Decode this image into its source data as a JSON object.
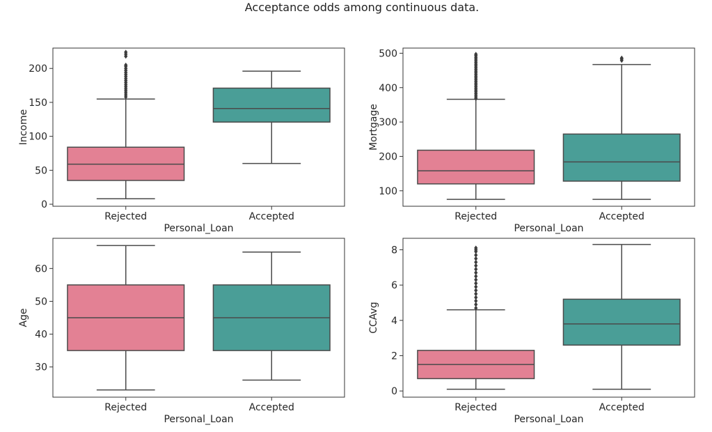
{
  "title": "Acceptance odds among continuous data.",
  "colors": {
    "rejected": "#e38194",
    "accepted": "#4a9e97",
    "line": "#4a4a4a",
    "outlier": "#3c3c3c"
  },
  "chart_data": [
    {
      "type": "box",
      "xlabel": "Personal_Loan",
      "ylabel": "Income",
      "categories": [
        "Rejected",
        "Accepted"
      ],
      "ylim": [
        -3,
        230
      ],
      "yticks": [
        0,
        50,
        100,
        150,
        200
      ],
      "boxes": [
        {
          "category": "Rejected",
          "min": 8,
          "q1": 35,
          "median": 59,
          "q3": 84,
          "max": 155,
          "outliers": [
            158,
            161,
            164,
            167,
            170,
            173,
            176,
            179,
            182,
            185,
            188,
            191,
            194,
            197,
            200,
            203,
            205,
            218,
            221,
            224
          ]
        },
        {
          "category": "Accepted",
          "min": 60,
          "q1": 121,
          "median": 141,
          "q3": 171,
          "max": 196,
          "outliers": []
        }
      ]
    },
    {
      "type": "box",
      "xlabel": "Personal_Loan",
      "ylabel": "Mortgage",
      "categories": [
        "Rejected",
        "Accepted"
      ],
      "ylim": [
        55,
        515
      ],
      "yticks": [
        100,
        200,
        300,
        400,
        500
      ],
      "boxes": [
        {
          "category": "Rejected",
          "min": 75,
          "q1": 120,
          "median": 158,
          "q3": 218,
          "max": 366,
          "outliers": [
            368,
            373,
            378,
            383,
            388,
            393,
            398,
            403,
            408,
            413,
            418,
            423,
            428,
            433,
            438,
            443,
            448,
            453,
            458,
            463,
            468,
            473,
            478,
            483,
            488,
            493,
            497
          ]
        },
        {
          "category": "Accepted",
          "min": 75,
          "q1": 128,
          "median": 184,
          "q3": 265,
          "max": 467,
          "outliers": [
            479,
            483,
            486
          ]
        }
      ]
    },
    {
      "type": "box",
      "xlabel": "Personal_Loan",
      "ylabel": "Age",
      "categories": [
        "Rejected",
        "Accepted"
      ],
      "ylim": [
        20.8,
        69.2
      ],
      "yticks": [
        30,
        40,
        50,
        60
      ],
      "boxes": [
        {
          "category": "Rejected",
          "min": 23,
          "q1": 35,
          "median": 45,
          "q3": 55,
          "max": 67,
          "outliers": []
        },
        {
          "category": "Accepted",
          "min": 26,
          "q1": 35,
          "median": 45,
          "q3": 55,
          "max": 65,
          "outliers": []
        }
      ]
    },
    {
      "type": "box",
      "xlabel": "Personal_Loan",
      "ylabel": "CCAvg",
      "categories": [
        "Rejected",
        "Accepted"
      ],
      "ylim": [
        -0.35,
        8.65
      ],
      "yticks": [
        0,
        2,
        4,
        6,
        8
      ],
      "boxes": [
        {
          "category": "Rejected",
          "min": 0.1,
          "q1": 0.7,
          "median": 1.5,
          "q3": 2.3,
          "max": 4.6,
          "outliers": [
            4.7,
            4.9,
            5.1,
            5.3,
            5.5,
            5.7,
            5.9,
            6.1,
            6.3,
            6.5,
            6.7,
            6.9,
            7.1,
            7.3,
            7.5,
            7.7,
            7.9,
            8.0,
            8.1
          ]
        },
        {
          "category": "Accepted",
          "min": 0.1,
          "q1": 2.6,
          "median": 3.8,
          "q3": 5.2,
          "max": 8.3,
          "outliers": []
        }
      ]
    }
  ]
}
